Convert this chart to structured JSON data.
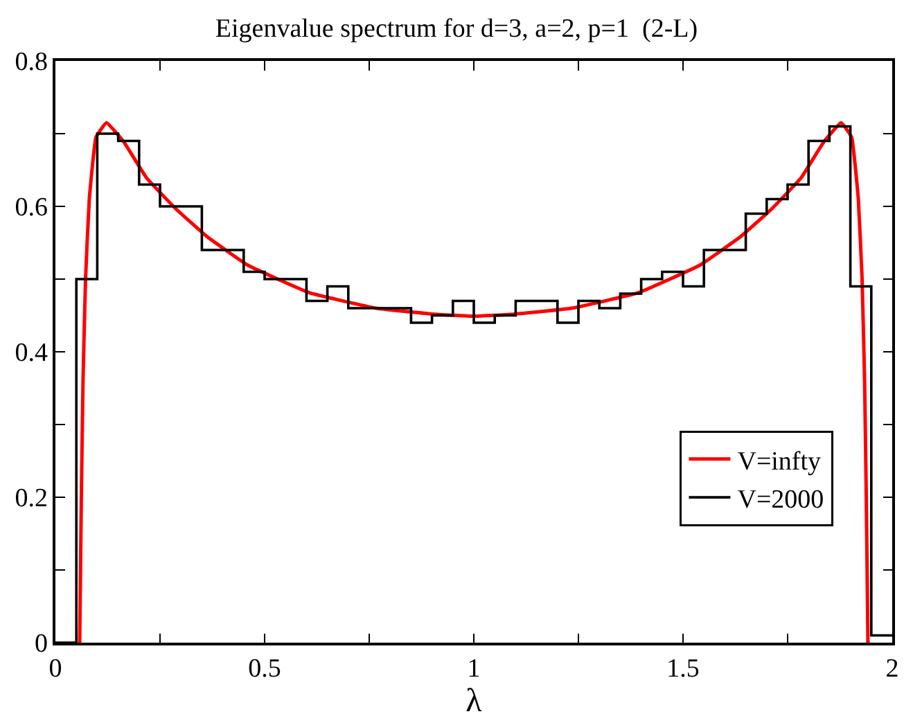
{
  "chart_data": {
    "type": "histogram",
    "title": "Eigenvalue spectrum for d=3, a=2, p=1  (2-L)",
    "xlabel": "λ",
    "xlim": [
      0,
      2
    ],
    "ylim": [
      0,
      0.8
    ],
    "xticks": [
      0,
      {
        "value": 0.25,
        "label": null
      },
      0.5,
      {
        "value": 0.75,
        "label": null
      },
      1,
      {
        "value": 1.25,
        "label": null
      },
      1.5,
      {
        "value": 1.75,
        "label": null
      },
      2
    ],
    "yticks": [
      0,
      {
        "value": 0.1,
        "label": null
      },
      0.2,
      {
        "value": 0.3,
        "label": null
      },
      0.4,
      {
        "value": 0.5,
        "label": null
      },
      0.6,
      {
        "value": 0.7,
        "label": null
      },
      0.8
    ],
    "grid": false,
    "legend": "bottom right",
    "series": [
      {
        "name": "V=infty",
        "type": "line",
        "color": "#ff0000",
        "x": [
          0.058,
          0.062,
          0.066,
          0.072,
          0.081,
          0.097,
          0.122,
          0.163,
          0.218,
          0.289,
          0.361,
          0.46,
          0.608,
          0.766,
          0.9,
          1.0,
          1.1,
          1.234,
          1.392,
          1.54,
          1.639,
          1.711,
          1.782,
          1.837,
          1.878,
          1.903,
          1.919,
          1.928,
          1.934,
          1.938,
          1.942
        ],
        "values": [
          0,
          0.2,
          0.36,
          0.5,
          0.61,
          0.695,
          0.715,
          0.689,
          0.639,
          0.596,
          0.559,
          0.519,
          0.481,
          0.46,
          0.452,
          0.449,
          0.452,
          0.46,
          0.481,
          0.519,
          0.559,
          0.596,
          0.639,
          0.689,
          0.715,
          0.695,
          0.61,
          0.5,
          0.36,
          0.2,
          0
        ]
      },
      {
        "name": "V=2000",
        "color": "#000000",
        "bins": [
          0,
          0.05,
          0.1,
          0.15,
          0.2,
          0.25,
          0.3,
          0.35,
          0.4,
          0.45,
          0.5,
          0.55,
          0.6,
          0.65,
          0.7,
          0.75,
          0.8,
          0.85,
          0.9,
          0.95,
          1.0,
          1.05,
          1.1,
          1.15,
          1.2,
          1.25,
          1.3,
          1.35,
          1.4,
          1.45,
          1.5,
          1.55,
          1.6,
          1.65,
          1.7,
          1.75,
          1.8,
          1.85,
          1.9,
          1.95,
          2.0
        ],
        "values": [
          0,
          0.5,
          0.7,
          0.69,
          0.63,
          0.6,
          0.6,
          0.54,
          0.54,
          0.51,
          0.5,
          0.5,
          0.47,
          0.49,
          0.46,
          0.46,
          0.46,
          0.44,
          0.45,
          0.47,
          0.44,
          0.45,
          0.47,
          0.47,
          0.44,
          0.47,
          0.46,
          0.48,
          0.5,
          0.51,
          0.49,
          0.54,
          0.54,
          0.59,
          0.61,
          0.63,
          0.69,
          0.71,
          0.49,
          0.01
        ]
      }
    ]
  }
}
